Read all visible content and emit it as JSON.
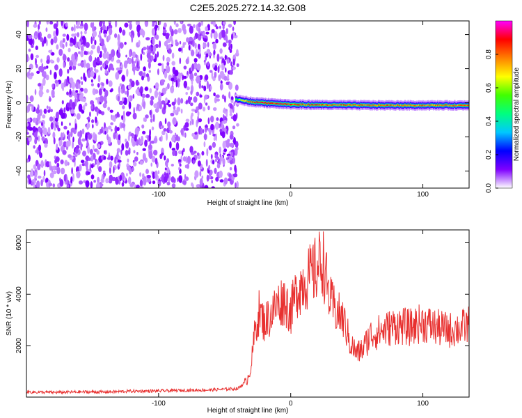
{
  "title": "C2E5.2025.272.14.32.G08",
  "chart_data": [
    {
      "type": "heatmap",
      "xlabel": "Height of straight line (km)",
      "ylabel": "Frequency (Hz)",
      "xlim": [
        -200,
        135
      ],
      "ylim": [
        -50,
        48
      ],
      "x_ticks": [
        -100,
        0,
        100
      ],
      "x_tick_labels": [
        "-100",
        "0",
        "100"
      ],
      "y_ticks": [
        -40,
        -20,
        0,
        20,
        40
      ],
      "y_tick_labels": [
        "-40",
        "-20",
        "0",
        "20",
        "40"
      ],
      "noise_region_x": [
        -200,
        -40
      ],
      "signal_track": {
        "x": [
          -42,
          -38,
          -30,
          -20,
          -10,
          0,
          20,
          50,
          80,
          110,
          135
        ],
        "frequency_hz": [
          2,
          1.5,
          0.5,
          0,
          -0.5,
          -1,
          -1.2,
          -1.4,
          -1.5,
          -1.5,
          -1.5
        ],
        "peak_amplitude": [
          0.55,
          0.7,
          0.9,
          0.95,
          0.92,
          0.9,
          0.88,
          0.87,
          0.86,
          0.85,
          0.85
        ]
      },
      "colorbar": {
        "label": "Normalized spectral amplitude",
        "range": [
          0,
          1
        ],
        "ticks": [
          0.0,
          0.2,
          0.4,
          0.6,
          0.8
        ],
        "tick_labels": [
          "0.0",
          "0.2",
          "0.4",
          "0.6",
          "0.8"
        ],
        "colormap": [
          "#ffffff",
          "#7f00ff",
          "#0000ff",
          "#00c8ff",
          "#00ff80",
          "#40ff00",
          "#ffff00",
          "#ff8000",
          "#ff0000",
          "#ff00ff"
        ]
      }
    },
    {
      "type": "line",
      "xlabel": "Height of straight line (km)",
      "ylabel": "SNR (10 * v/v)",
      "xlim": [
        -200,
        135
      ],
      "ylim": [
        0,
        6500
      ],
      "x_ticks": [
        -100,
        0,
        100
      ],
      "x_tick_labels": [
        "-100",
        "0",
        "100"
      ],
      "y_ticks": [
        2000,
        4000,
        6000
      ],
      "y_tick_labels": [
        "2000",
        "4000",
        "6000"
      ],
      "series": [
        {
          "color": "#e8302f",
          "x": [
            -200,
            -180,
            -160,
            -140,
            -120,
            -100,
            -80,
            -60,
            -40,
            -33,
            -30,
            -27,
            -24,
            -20,
            -15,
            -10,
            -5,
            0,
            5,
            10,
            15,
            20,
            24,
            27,
            30,
            35,
            40,
            45,
            50,
            55,
            60,
            70,
            80,
            90,
            100,
            110,
            120,
            130,
            135
          ],
          "y": [
            200,
            180,
            200,
            200,
            230,
            240,
            260,
            280,
            330,
            650,
            1200,
            2600,
            3300,
            2900,
            3200,
            3600,
            3800,
            3300,
            4200,
            4500,
            4700,
            5000,
            5400,
            4500,
            3700,
            3300,
            3000,
            2100,
            1700,
            1900,
            2400,
            2600,
            2800,
            2700,
            2900,
            2700,
            2600,
            2700,
            2800
          ]
        }
      ]
    }
  ]
}
